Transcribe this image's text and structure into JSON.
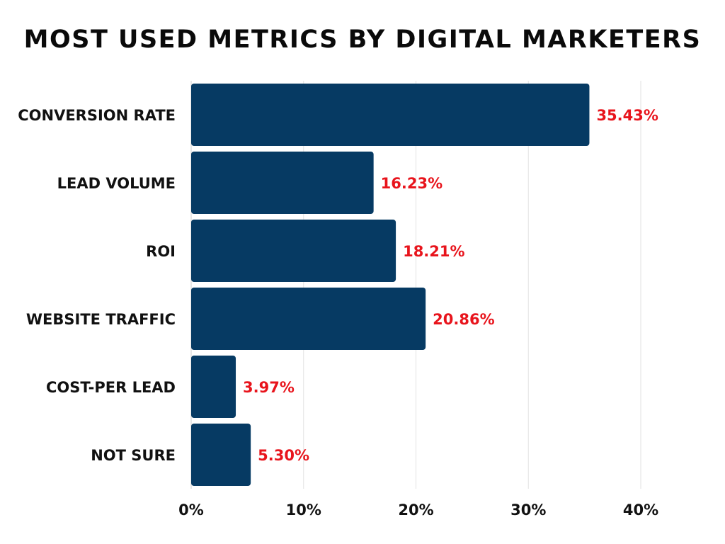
{
  "chart_data": {
    "type": "bar",
    "orientation": "horizontal",
    "title": "MOST USED METRICS BY DIGITAL MARKETERS",
    "categories": [
      "CONVERSION RATE",
      "LEAD VOLUME",
      "ROI",
      "WEBSITE TRAFFIC",
      "COST-PER LEAD",
      "NOT SURE"
    ],
    "values": [
      35.43,
      16.23,
      18.21,
      20.86,
      3.97,
      5.3
    ],
    "data_labels": [
      "35.43%",
      "16.23%",
      "18.21%",
      "20.86%",
      "3.97%",
      "5.30%"
    ],
    "xlim": [
      0,
      40
    ],
    "x_ticks": [
      0,
      10,
      20,
      30,
      40
    ],
    "x_tick_labels": [
      "0%",
      "10%",
      "20%",
      "30%",
      "40%"
    ],
    "xlabel": "",
    "ylabel": "",
    "grid": "vertical",
    "legend": "none",
    "colors": {
      "bar": "#063a63",
      "data_label": "#e8141c",
      "grid": "#e2e2e2",
      "text": "#111111"
    }
  }
}
